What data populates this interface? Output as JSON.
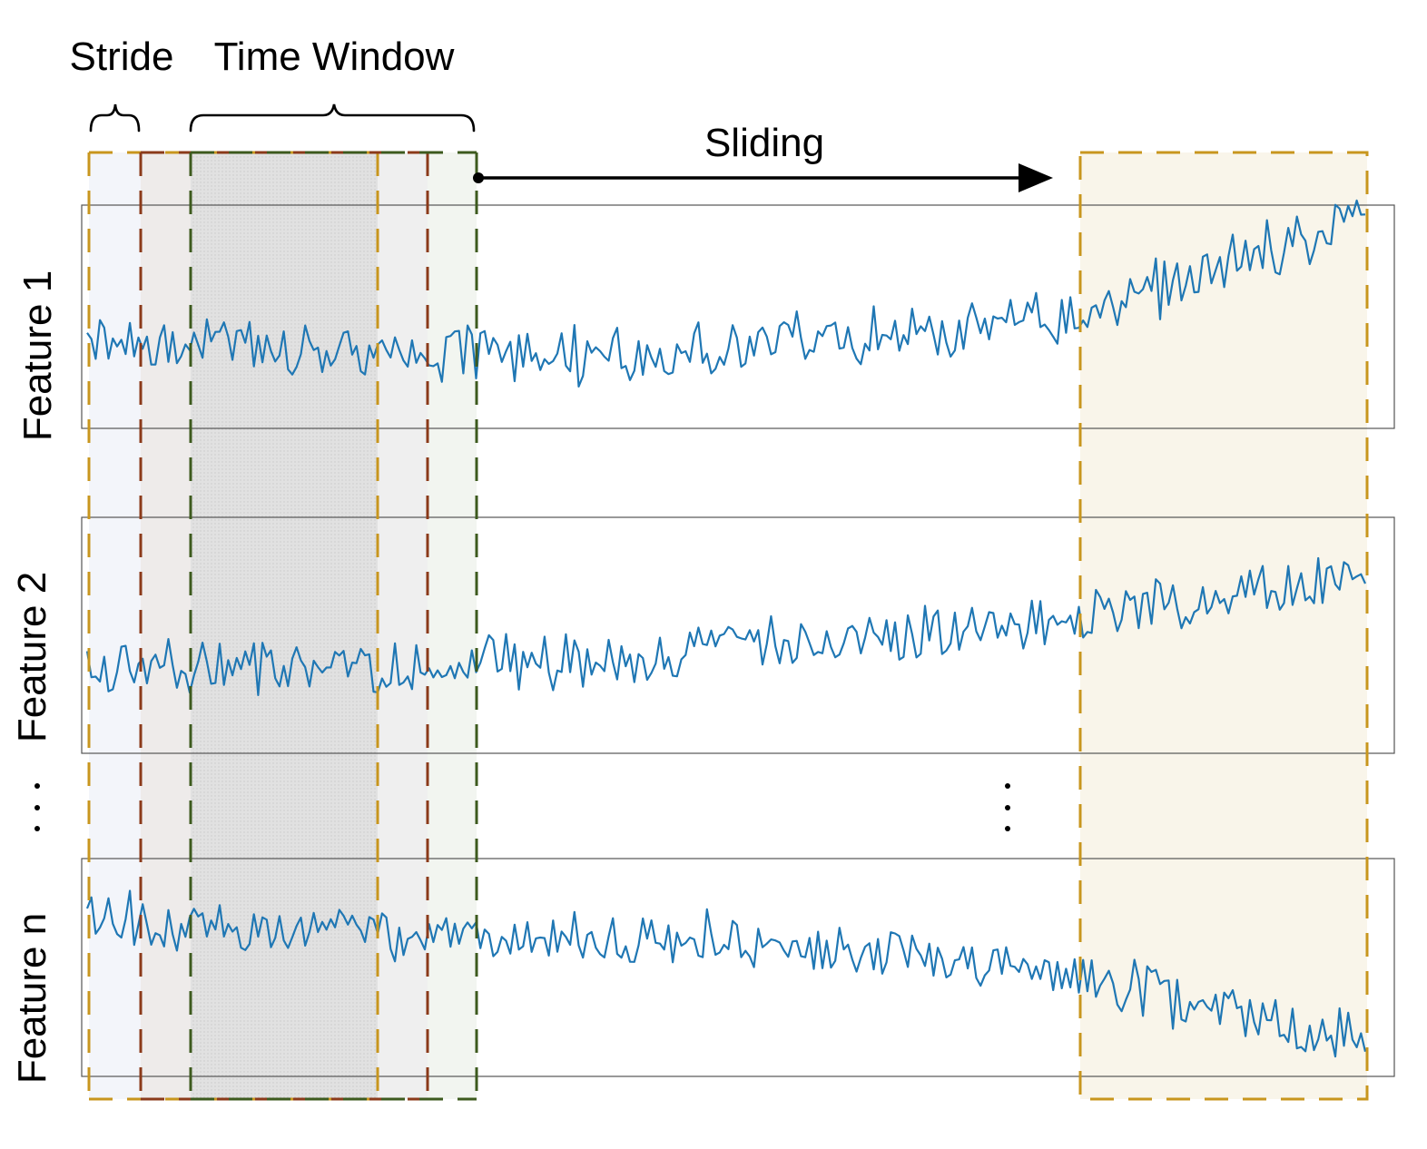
{
  "labels": {
    "stride": "Stride",
    "time_window": "Time Window",
    "sliding": "Sliding"
  },
  "features": [
    {
      "name": "Feature 1",
      "trend": "up"
    },
    {
      "name": "Feature 2",
      "trend": "up"
    },
    {
      "name": "Feature n",
      "trend": "down"
    }
  ],
  "ellipsis": ":",
  "colors": {
    "signal": "#1f77b4",
    "window_gold": "#c8961e",
    "window_brown": "#8b3a1a",
    "window_green": "#3d5a1e",
    "panel_border": "#555555",
    "arrow": "#000000"
  }
}
